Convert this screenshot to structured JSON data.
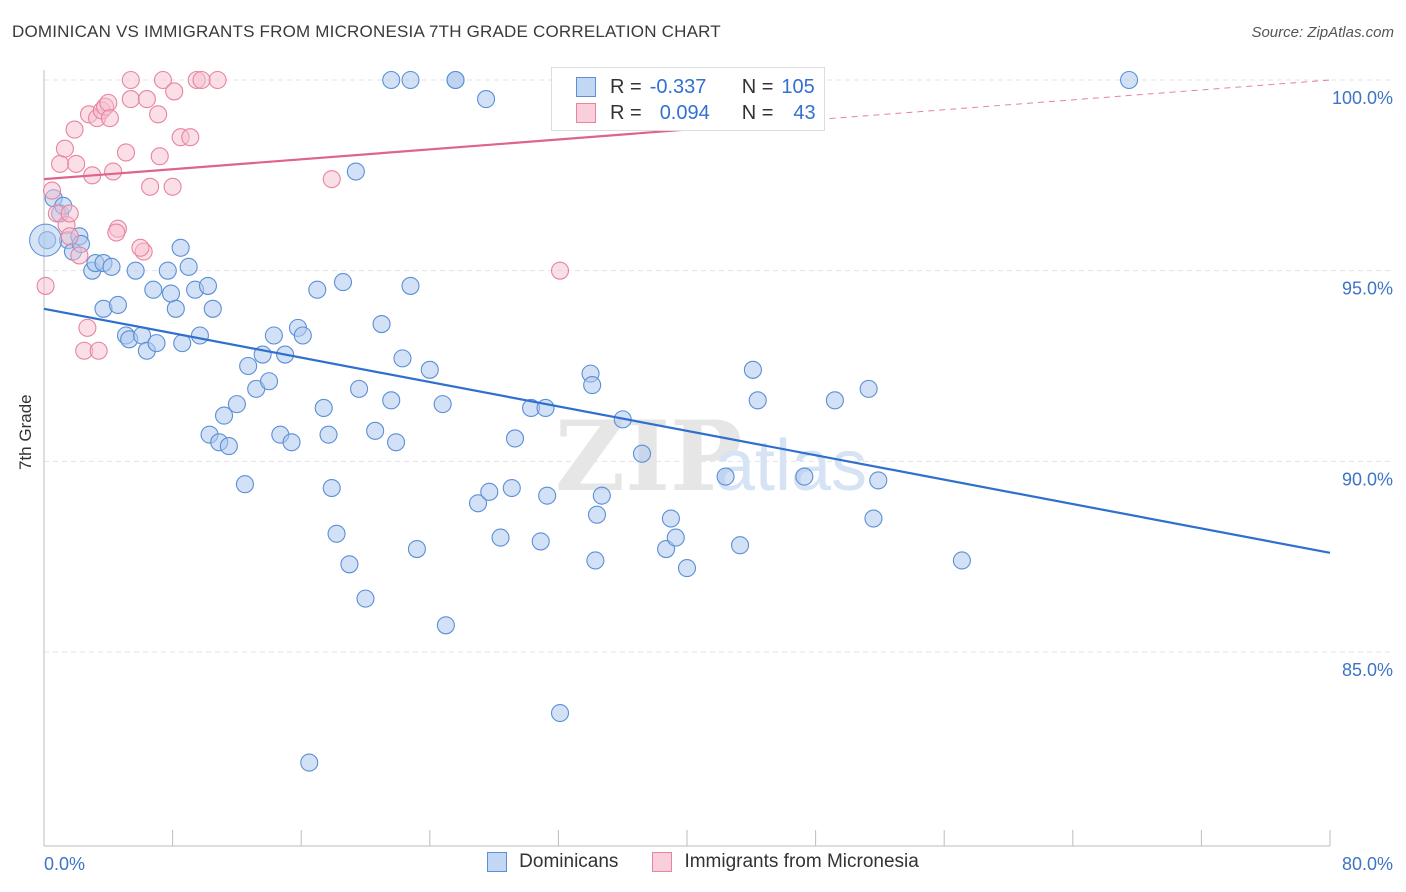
{
  "header": {
    "title": "DOMINICAN VS IMMIGRANTS FROM MICRONESIA 7TH GRADE CORRELATION CHART",
    "source": "Source: ZipAtlas.com"
  },
  "colors": {
    "blue": "#5b8fd6",
    "blue_fill": "#aec9ee",
    "blue_line": "#2f6fce",
    "pink": "#e8849f",
    "pink_fill": "#f6bfd0",
    "pink_line": "#e0638a",
    "tick": "#3e74c4"
  },
  "legend": {
    "rows": [
      {
        "r_label": "R =",
        "r_value": "-0.337",
        "n_label": "N =",
        "n_value": "105"
      },
      {
        "r_label": "R =",
        "r_value": "0.094",
        "n_label": "N =",
        "n_value": "43"
      }
    ]
  },
  "bottom_legend": {
    "series1": "Dominicans",
    "series2": "Immigrants from Micronesia"
  },
  "chart_data": {
    "type": "scatter",
    "title": "DOMINICAN VS IMMIGRANTS FROM MICRONESIA 7TH GRADE CORRELATION CHART",
    "xlabel": "",
    "ylabel": "7th Grade",
    "xlim": [
      0,
      80
    ],
    "ylim": [
      80.0,
      100.8
    ],
    "x_tick_labels": [
      {
        "value": 0,
        "label": "0.0%"
      },
      {
        "value": 80,
        "label": "80.0%"
      }
    ],
    "y_tick_labels": [
      {
        "value": 100,
        "label": "100.0%"
      },
      {
        "value": 95,
        "label": "95.0%"
      },
      {
        "value": 90,
        "label": "90.0%"
      },
      {
        "value": 85,
        "label": "85.0%"
      }
    ],
    "grid": true,
    "watermark": "ZIPatlas",
    "series": [
      {
        "name": "Dominicans",
        "color": "#5b8fd6",
        "trend": {
          "x": [
            0,
            80
          ],
          "y": [
            94.0,
            87.6
          ]
        },
        "points": [
          [
            0.2,
            95.8
          ],
          [
            0.6,
            96.9
          ],
          [
            1.0,
            96.5
          ],
          [
            1.2,
            96.7
          ],
          [
            1.5,
            95.8
          ],
          [
            1.8,
            95.5
          ],
          [
            2.2,
            95.9
          ],
          [
            2.3,
            95.7
          ],
          [
            3.0,
            95.0
          ],
          [
            3.2,
            95.2
          ],
          [
            3.7,
            95.2
          ],
          [
            4.2,
            95.1
          ],
          [
            3.7,
            94.0
          ],
          [
            4.6,
            94.1
          ],
          [
            5.1,
            93.3
          ],
          [
            5.3,
            93.2
          ],
          [
            6.1,
            93.3
          ],
          [
            6.4,
            92.9
          ],
          [
            5.7,
            95.0
          ],
          [
            6.8,
            94.5
          ],
          [
            7.0,
            93.1
          ],
          [
            7.7,
            95.0
          ],
          [
            7.9,
            94.4
          ],
          [
            8.2,
            94.0
          ],
          [
            8.5,
            95.6
          ],
          [
            8.6,
            93.1
          ],
          [
            9.0,
            95.1
          ],
          [
            9.4,
            94.5
          ],
          [
            9.7,
            93.3
          ],
          [
            10.2,
            94.6
          ],
          [
            10.5,
            94.0
          ],
          [
            10.3,
            90.7
          ],
          [
            10.9,
            90.5
          ],
          [
            11.2,
            91.2
          ],
          [
            11.5,
            90.4
          ],
          [
            12.0,
            91.5
          ],
          [
            12.5,
            89.4
          ],
          [
            12.7,
            92.5
          ],
          [
            13.2,
            91.9
          ],
          [
            13.6,
            92.8
          ],
          [
            14.3,
            93.3
          ],
          [
            14.0,
            92.1
          ],
          [
            14.7,
            90.7
          ],
          [
            15.0,
            92.8
          ],
          [
            15.4,
            90.5
          ],
          [
            15.8,
            93.5
          ],
          [
            16.1,
            93.3
          ],
          [
            16.5,
            82.1
          ],
          [
            17.0,
            94.5
          ],
          [
            17.4,
            91.4
          ],
          [
            17.9,
            89.3
          ],
          [
            17.7,
            90.7
          ],
          [
            18.2,
            88.1
          ],
          [
            18.6,
            94.7
          ],
          [
            19.0,
            87.3
          ],
          [
            19.4,
            97.6
          ],
          [
            19.6,
            91.9
          ],
          [
            20.0,
            86.4
          ],
          [
            20.6,
            90.8
          ],
          [
            21.0,
            93.6
          ],
          [
            21.6,
            91.6
          ],
          [
            21.9,
            90.5
          ],
          [
            22.3,
            92.7
          ],
          [
            22.8,
            94.6
          ],
          [
            23.2,
            87.7
          ],
          [
            24.0,
            92.4
          ],
          [
            24.8,
            91.5
          ],
          [
            25.0,
            85.7
          ],
          [
            25.6,
            100.0
          ],
          [
            27.0,
            88.9
          ],
          [
            27.5,
            99.5
          ],
          [
            27.7,
            89.2
          ],
          [
            28.4,
            88.0
          ],
          [
            29.3,
            90.6
          ],
          [
            29.1,
            89.3
          ],
          [
            30.3,
            91.4
          ],
          [
            30.9,
            87.9
          ],
          [
            31.2,
            91.4
          ],
          [
            31.3,
            89.1
          ],
          [
            32.1,
            83.4
          ],
          [
            33.0,
            100.0
          ],
          [
            34.0,
            92.3
          ],
          [
            34.1,
            92.0
          ],
          [
            34.3,
            87.4
          ],
          [
            34.4,
            88.6
          ],
          [
            34.7,
            89.1
          ],
          [
            36.0,
            91.1
          ],
          [
            37.2,
            90.2
          ],
          [
            38.7,
            87.7
          ],
          [
            39.0,
            88.5
          ],
          [
            39.3,
            88.0
          ],
          [
            40.0,
            87.2
          ],
          [
            42.4,
            89.6
          ],
          [
            43.3,
            87.8
          ],
          [
            44.1,
            92.4
          ],
          [
            44.4,
            91.6
          ],
          [
            47.3,
            89.6
          ],
          [
            49.2,
            91.6
          ],
          [
            51.3,
            91.9
          ],
          [
            51.9,
            89.5
          ],
          [
            51.6,
            88.5
          ],
          [
            57.1,
            87.4
          ],
          [
            67.5,
            100.0
          ],
          [
            21.6,
            100.0
          ],
          [
            22.8,
            100.0
          ],
          [
            25.6,
            100.0
          ]
        ]
      },
      {
        "name": "Immigrants from Micronesia",
        "color": "#e8849f",
        "trend": {
          "x": [
            0,
            40
          ],
          "y": [
            97.4,
            98.7
          ]
        },
        "trend_extension": {
          "x": [
            40,
            80
          ],
          "y": [
            98.7,
            100.0
          ]
        },
        "points": [
          [
            0.1,
            94.6
          ],
          [
            0.5,
            97.1
          ],
          [
            0.8,
            96.5
          ],
          [
            1.0,
            97.8
          ],
          [
            1.3,
            98.2
          ],
          [
            1.4,
            96.2
          ],
          [
            1.6,
            96.5
          ],
          [
            1.6,
            95.9
          ],
          [
            1.9,
            98.7
          ],
          [
            2.0,
            97.8
          ],
          [
            2.2,
            95.4
          ],
          [
            2.5,
            92.9
          ],
          [
            2.7,
            93.5
          ],
          [
            2.8,
            99.1
          ],
          [
            3.0,
            97.5
          ],
          [
            3.3,
            99.0
          ],
          [
            3.4,
            92.9
          ],
          [
            3.6,
            99.2
          ],
          [
            3.8,
            99.3
          ],
          [
            4.0,
            99.4
          ],
          [
            4.1,
            99.0
          ],
          [
            4.3,
            97.6
          ],
          [
            4.6,
            96.1
          ],
          [
            5.1,
            98.1
          ],
          [
            5.4,
            99.5
          ],
          [
            5.4,
            100.0
          ],
          [
            6.2,
            95.5
          ],
          [
            6.4,
            99.5
          ],
          [
            6.6,
            97.2
          ],
          [
            7.1,
            99.1
          ],
          [
            7.2,
            98.0
          ],
          [
            7.4,
            100.0
          ],
          [
            8.0,
            97.2
          ],
          [
            8.1,
            99.7
          ],
          [
            8.5,
            98.5
          ],
          [
            9.1,
            98.5
          ],
          [
            9.5,
            100.0
          ],
          [
            10.8,
            100.0
          ],
          [
            17.9,
            97.4
          ],
          [
            32.1,
            95.0
          ],
          [
            9.8,
            100.0
          ],
          [
            6.0,
            95.6
          ],
          [
            4.5,
            96.0
          ]
        ]
      }
    ]
  }
}
